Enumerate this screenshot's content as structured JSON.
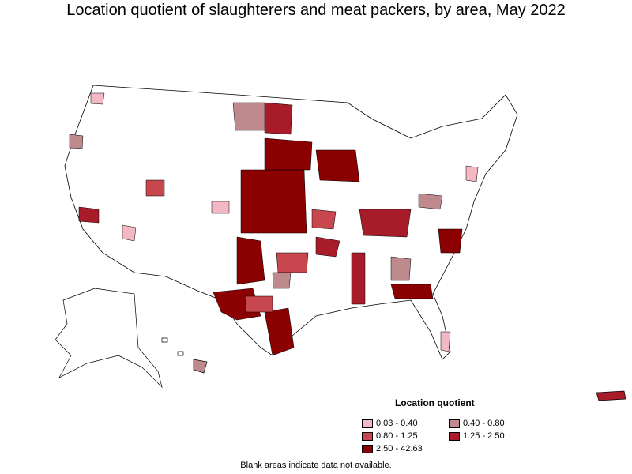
{
  "title": "Location quotient of slaughterers and meat packers, by area, May 2022",
  "legend": {
    "title": "Location quotient",
    "items": [
      {
        "label": "0.03 - 0.40",
        "color": "#f4b8c4"
      },
      {
        "label": "0.40 - 0.80",
        "color": "#bf8a8e"
      },
      {
        "label": "0.80 - 1.25",
        "color": "#c8474f"
      },
      {
        "label": "1.25 - 2.50",
        "color": "#a81c2a"
      },
      {
        "label": "2.50 - 42.63",
        "color": "#8b0000"
      }
    ]
  },
  "footnote": "Blank areas indicate data not available.",
  "colors": {
    "outline": "#000000",
    "blank": "#ffffff"
  }
}
